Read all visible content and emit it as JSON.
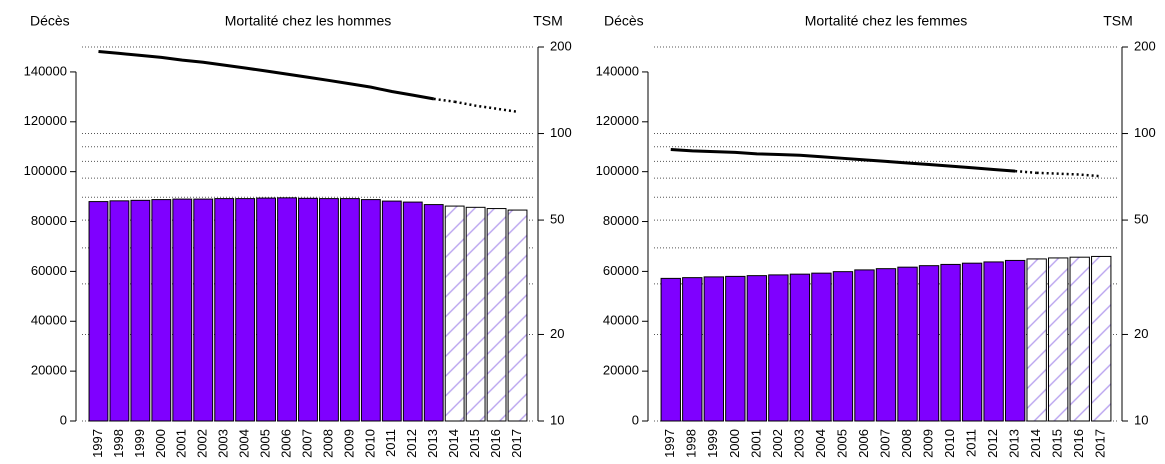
{
  "chart_data": [
    {
      "type": "bar",
      "title": "Mortalité chez les hommes",
      "y_label": "Décès",
      "y2_label": "TSM",
      "categories": [
        "1997",
        "1998",
        "1999",
        "2000",
        "2001",
        "2002",
        "2003",
        "2004",
        "2005",
        "2006",
        "2007",
        "2008",
        "2009",
        "2010",
        "2011",
        "2012",
        "2013",
        "2014",
        "2015",
        "2016",
        "2017"
      ],
      "projected": [
        false,
        false,
        false,
        false,
        false,
        false,
        false,
        false,
        false,
        false,
        false,
        false,
        false,
        false,
        false,
        false,
        false,
        true,
        true,
        true,
        true
      ],
      "series": [
        {
          "type": "bar",
          "color": "#7f00ff",
          "hatch_color": "#b9a3ef",
          "values": [
            88000,
            88300,
            88500,
            88800,
            89000,
            89000,
            89200,
            89200,
            89400,
            89500,
            89300,
            89200,
            89200,
            88800,
            88200,
            87800,
            86800,
            86200,
            85700,
            85200,
            84600
          ]
        },
        {
          "type": "line",
          "axis": "y2",
          "color": "#000000",
          "values": [
            193,
            190,
            187,
            184,
            180,
            177,
            173,
            169,
            165,
            161,
            157,
            153,
            149,
            145,
            140,
            136,
            132,
            129,
            125,
            122,
            119
          ]
        }
      ],
      "ylim": [
        0,
        150000
      ],
      "yticks": [
        0,
        20000,
        40000,
        60000,
        80000,
        100000,
        120000,
        140000
      ],
      "y2lim": [
        10,
        200
      ],
      "y2ticks": [
        10,
        20,
        50,
        100,
        200
      ],
      "y2_log": true,
      "y2_minor_ticks": [
        30,
        40,
        60,
        70,
        80,
        90
      ],
      "grid": true
    },
    {
      "type": "bar",
      "title": "Mortalité chez les femmes",
      "y_label": "Décès",
      "y2_label": "TSM",
      "categories": [
        "1997",
        "1998",
        "1999",
        "2000",
        "2001",
        "2002",
        "2003",
        "2004",
        "2005",
        "2006",
        "2007",
        "2008",
        "2009",
        "2010",
        "2011",
        "2012",
        "2013",
        "2014",
        "2015",
        "2016",
        "2017"
      ],
      "projected": [
        false,
        false,
        false,
        false,
        false,
        false,
        false,
        false,
        false,
        false,
        false,
        false,
        false,
        false,
        false,
        false,
        false,
        true,
        true,
        true,
        true
      ],
      "series": [
        {
          "type": "bar",
          "color": "#7f00ff",
          "hatch_color": "#b9a3ef",
          "values": [
            57200,
            57500,
            57800,
            58000,
            58300,
            58600,
            58900,
            59300,
            59900,
            60600,
            61100,
            61700,
            62300,
            62800,
            63300,
            63800,
            64400,
            65000,
            65400,
            65700,
            66000
          ]
        },
        {
          "type": "line",
          "axis": "y2",
          "color": "#000000",
          "values": [
            88,
            87,
            86.5,
            86,
            85,
            84.5,
            84,
            83,
            82,
            81,
            80,
            79,
            78,
            77,
            76,
            75,
            74,
            73,
            72.5,
            72,
            71
          ]
        }
      ],
      "ylim": [
        0,
        150000
      ],
      "yticks": [
        0,
        20000,
        40000,
        60000,
        80000,
        100000,
        120000,
        140000
      ],
      "y2lim": [
        10,
        200
      ],
      "y2ticks": [
        10,
        20,
        50,
        100,
        200
      ],
      "y2_log": true,
      "y2_minor_ticks": [
        30,
        40,
        60,
        70,
        80,
        90
      ],
      "grid": true
    }
  ]
}
